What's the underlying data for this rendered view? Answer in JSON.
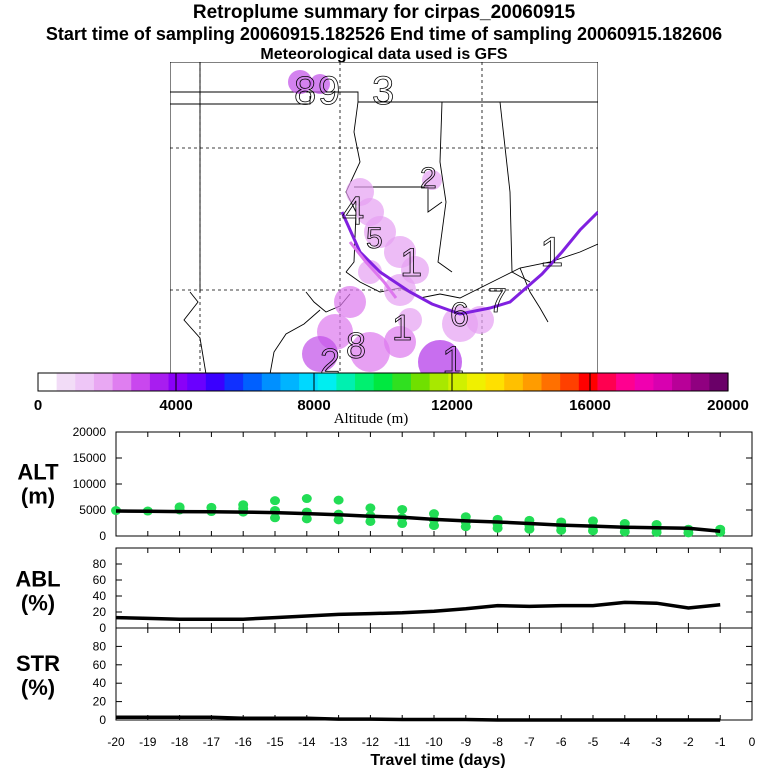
{
  "header": {
    "title": "Retroplume summary for cirpas_20060915",
    "sampling": "Start time of sampling 20060915.182526     End time of sampling 20060915.182606",
    "met": "Meteorological data used is GFS"
  },
  "colors": {
    "scale": [
      "#ffffff",
      "#f2dcf7",
      "#eec6f7",
      "#e9a8f3",
      "#df7ef0",
      "#c947ee",
      "#a81df0",
      "#8a00f8",
      "#6a00ff",
      "#3a00ff",
      "#1030ff",
      "#0060ff",
      "#0090ff",
      "#00b4ff",
      "#00d8ff",
      "#00eef0",
      "#00f0b0",
      "#00f070",
      "#00e840",
      "#30e020",
      "#70e000",
      "#a8e800",
      "#d0f000",
      "#f0f000",
      "#ffe000",
      "#ffc000",
      "#ff9c00",
      "#ff7000",
      "#ff4000",
      "#ff0000",
      "#ff0050",
      "#ff0090",
      "#f000b0",
      "#d800b0",
      "#b80098",
      "#900080",
      "#6a0068"
    ],
    "trajectory": "#8020e0",
    "plume": "#dd77ee",
    "alt_points": "#22dd55",
    "line": "#000000"
  },
  "map": {
    "glyphs": [
      "8",
      "9",
      "3",
      "2",
      "4",
      "5",
      "1",
      "6",
      "7",
      "8",
      "1",
      "2",
      "1",
      "1"
    ]
  },
  "colorbar": {
    "ticks": [
      "0",
      "4000",
      "8000",
      "12000",
      "16000",
      "20000"
    ],
    "label": "Altitude (m)"
  },
  "chart_data": {
    "type": "line",
    "x": [
      -20,
      -19,
      -18,
      -17,
      -16,
      -15,
      -14,
      -13,
      -12,
      -11,
      -10,
      -9,
      -8,
      -7,
      -6,
      -5,
      -4,
      -3,
      -2,
      -1
    ],
    "xlim": [
      -20,
      0
    ],
    "xticks": [
      "-20",
      "-19",
      "-18",
      "-17",
      "-16",
      "-15",
      "-14",
      "-13",
      "-12",
      "-11",
      "-10",
      "-9",
      "-8",
      "-7",
      "-6",
      "-5",
      "-4",
      "-3",
      "-2",
      "-1",
      "0"
    ],
    "xlabel": "Travel time (days)",
    "panels": [
      {
        "name": "ALT",
        "label": "ALT",
        "unit": "(m)",
        "ylim": [
          0,
          20000
        ],
        "yticks": [
          "0",
          "5000",
          "10000",
          "15000",
          "20000"
        ],
        "line": [
          4800,
          4750,
          4700,
          4650,
          4600,
          4500,
          4300,
          4100,
          3800,
          3600,
          3200,
          2900,
          2700,
          2400,
          2100,
          1900,
          1700,
          1600,
          1500,
          900
        ],
        "points": [
          [
            -20,
            4900
          ],
          [
            -19,
            4800
          ],
          [
            -18,
            5000
          ],
          [
            -18,
            5600
          ],
          [
            -17,
            4700
          ],
          [
            -17,
            5500
          ],
          [
            -16,
            4600
          ],
          [
            -16,
            5300
          ],
          [
            -16,
            6000
          ],
          [
            -15,
            3500
          ],
          [
            -15,
            4900
          ],
          [
            -15,
            6800
          ],
          [
            -14,
            3300
          ],
          [
            -14,
            4600
          ],
          [
            -14,
            7200
          ],
          [
            -13,
            3100
          ],
          [
            -13,
            4200
          ],
          [
            -13,
            6900
          ],
          [
            -12,
            2800
          ],
          [
            -12,
            3900
          ],
          [
            -12,
            5400
          ],
          [
            -11,
            2400
          ],
          [
            -11,
            3500
          ],
          [
            -11,
            5100
          ],
          [
            -10,
            2000
          ],
          [
            -10,
            3100
          ],
          [
            -10,
            4300
          ],
          [
            -9,
            1800
          ],
          [
            -9,
            2700
          ],
          [
            -9,
            3700
          ],
          [
            -8,
            1500
          ],
          [
            -8,
            2300
          ],
          [
            -8,
            3200
          ],
          [
            -7,
            1300
          ],
          [
            -7,
            2100
          ],
          [
            -7,
            3000
          ],
          [
            -6,
            1100
          ],
          [
            -6,
            1900
          ],
          [
            -6,
            2700
          ],
          [
            -5,
            1000
          ],
          [
            -5,
            1800
          ],
          [
            -5,
            2900
          ],
          [
            -4,
            800
          ],
          [
            -4,
            1600
          ],
          [
            -4,
            2400
          ],
          [
            -3,
            700
          ],
          [
            -3,
            1400
          ],
          [
            -3,
            2200
          ],
          [
            -2,
            600
          ],
          [
            -2,
            1300
          ],
          [
            -1,
            700
          ],
          [
            -1,
            1300
          ]
        ]
      },
      {
        "name": "ABL",
        "label": "ABL",
        "unit": "(%)",
        "ylim": [
          0,
          100
        ],
        "yticks": [
          "0",
          "20",
          "40",
          "60",
          "80"
        ],
        "line": [
          13,
          12,
          11,
          11,
          11,
          13,
          15,
          17,
          18,
          19,
          21,
          24,
          28,
          27,
          28,
          28,
          32,
          31,
          25,
          29
        ]
      },
      {
        "name": "STR",
        "label": "STR",
        "unit": "(%)",
        "ylim": [
          0,
          100
        ],
        "yticks": [
          "0",
          "20",
          "40",
          "60",
          "80"
        ],
        "line": [
          3,
          3,
          3,
          3,
          2,
          2,
          2,
          1,
          1,
          0.5,
          0.5,
          0.5,
          0,
          0,
          0,
          0,
          0,
          0,
          0,
          0
        ]
      }
    ]
  }
}
